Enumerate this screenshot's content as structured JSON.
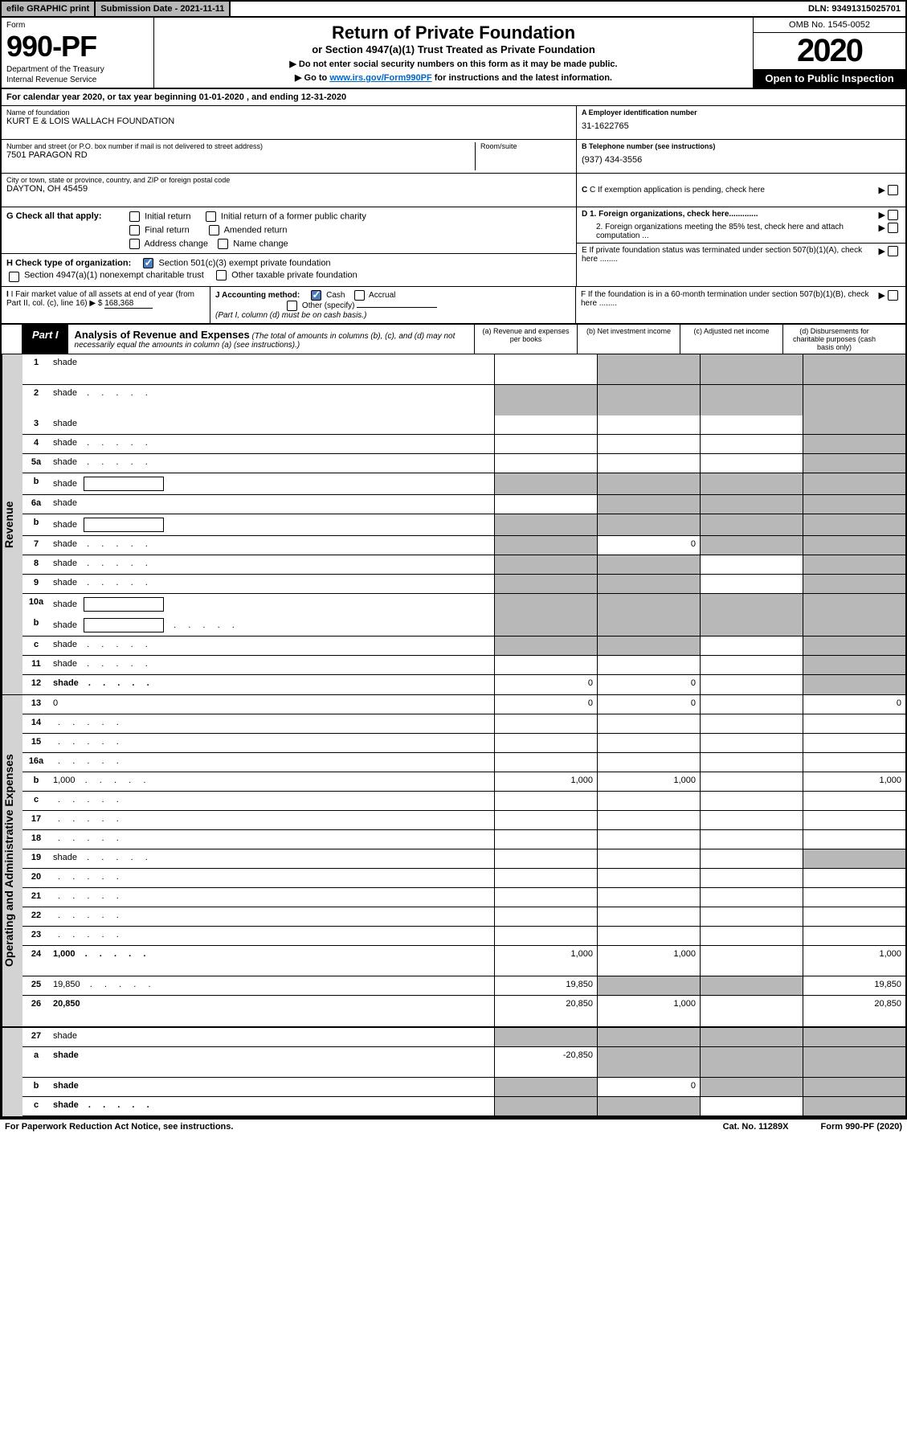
{
  "topbar": {
    "efile": "efile GRAPHIC print",
    "submission": "Submission Date - 2021-11-11",
    "dln": "DLN: 93491315025701"
  },
  "header": {
    "form_label": "Form",
    "form_num": "990-PF",
    "dept1": "Department of the Treasury",
    "dept2": "Internal Revenue Service",
    "title": "Return of Private Foundation",
    "subtitle": "or Section 4947(a)(1) Trust Treated as Private Foundation",
    "instr1": "▶ Do not enter social security numbers on this form as it may be made public.",
    "instr2_pre": "▶ Go to ",
    "instr2_link": "www.irs.gov/Form990PF",
    "instr2_post": " for instructions and the latest information.",
    "omb": "OMB No. 1545-0052",
    "year": "2020",
    "open": "Open to Public Inspection"
  },
  "cal_year": "For calendar year 2020, or tax year beginning 01-01-2020                               , and ending 12-31-2020",
  "info": {
    "name_label": "Name of foundation",
    "name": "KURT E & LOIS WALLACH FOUNDATION",
    "addr_label": "Number and street (or P.O. box number if mail is not delivered to street address)",
    "addr": "7501 PARAGON RD",
    "room_label": "Room/suite",
    "city_label": "City or town, state or province, country, and ZIP or foreign postal code",
    "city": "DAYTON, OH  45459",
    "ein_label": "A Employer identification number",
    "ein": "31-1622765",
    "tel_label": "B Telephone number (see instructions)",
    "tel": "(937) 434-3556",
    "c_label": "C If exemption application is pending, check here",
    "d1_label": "D 1. Foreign organizations, check here.............",
    "d2_label": "2. Foreign organizations meeting the 85% test, check here and attach computation ...",
    "e_label": "E  If private foundation status was terminated under section 507(b)(1)(A), check here ........",
    "f_label": "F  If the foundation is in a 60-month termination under section 507(b)(1)(B), check here ........"
  },
  "g": {
    "label": "G Check all that apply:",
    "opts": [
      "Initial return",
      "Initial return of a former public charity",
      "Final return",
      "Amended return",
      "Address change",
      "Name change"
    ]
  },
  "h": {
    "label": "H Check type of organization:",
    "opt1": "Section 501(c)(3) exempt private foundation",
    "opt2": "Section 4947(a)(1) nonexempt charitable trust",
    "opt3": "Other taxable private foundation"
  },
  "i": {
    "label": "I Fair market value of all assets at end of year (from Part II, col. (c), line 16) ▶ $",
    "val": "168,368"
  },
  "j": {
    "label": "J Accounting method:",
    "cash": "Cash",
    "accrual": "Accrual",
    "other": "Other (specify)",
    "note": "(Part I, column (d) must be on cash basis.)"
  },
  "part1": {
    "tab": "Part I",
    "title": "Analysis of Revenue and Expenses",
    "note": "(The total of amounts in columns (b), (c), and (d) may not necessarily equal the amounts in column (a) (see instructions).)",
    "col_a": "(a)  Revenue and expenses per books",
    "col_b": "(b)  Net investment income",
    "col_c": "(c)  Adjusted net income",
    "col_d": "(d)  Disbursements for charitable purposes (cash basis only)"
  },
  "side_labels": {
    "rev": "Revenue",
    "exp": "Operating and Administrative Expenses"
  },
  "rows": [
    {
      "n": "1",
      "d": "shade",
      "a": "",
      "b": "shade",
      "c": "shade",
      "tall": true
    },
    {
      "n": "2",
      "d": "shade",
      "a": "shade",
      "b": "shade",
      "c": "shade",
      "tall": true,
      "nob": true,
      "dots": true
    },
    {
      "n": "3",
      "d": "shade",
      "a": "",
      "b": "",
      "c": ""
    },
    {
      "n": "4",
      "d": "shade",
      "a": "",
      "b": "",
      "c": "",
      "dots": true
    },
    {
      "n": "5a",
      "d": "shade",
      "a": "",
      "b": "",
      "c": "",
      "dots": true
    },
    {
      "n": "b",
      "d": "shade",
      "a": "shade",
      "b": "shade",
      "c": "shade",
      "box": true
    },
    {
      "n": "6a",
      "d": "shade",
      "a": "",
      "b": "shade",
      "c": "shade"
    },
    {
      "n": "b",
      "d": "shade",
      "a": "shade",
      "b": "shade",
      "c": "shade",
      "box": true
    },
    {
      "n": "7",
      "d": "shade",
      "a": "shade",
      "b": "0",
      "c": "shade",
      "dots": true
    },
    {
      "n": "8",
      "d": "shade",
      "a": "shade",
      "b": "shade",
      "c": "",
      "dots": true
    },
    {
      "n": "9",
      "d": "shade",
      "a": "shade",
      "b": "shade",
      "c": "",
      "dots": true
    },
    {
      "n": "10a",
      "d": "shade",
      "a": "shade",
      "b": "shade",
      "c": "shade",
      "box": true,
      "nob": true
    },
    {
      "n": "b",
      "d": "shade",
      "a": "shade",
      "b": "shade",
      "c": "shade",
      "box": true,
      "dots": true
    },
    {
      "n": "c",
      "d": "shade",
      "a": "shade",
      "b": "shade",
      "c": "",
      "dots": true
    },
    {
      "n": "11",
      "d": "shade",
      "a": "",
      "b": "",
      "c": "",
      "dots": true
    },
    {
      "n": "12",
      "d": "shade",
      "a": "0",
      "b": "0",
      "c": "",
      "bold": true,
      "dots": true
    }
  ],
  "exp_rows": [
    {
      "n": "13",
      "d": "0",
      "a": "0",
      "b": "0",
      "c": ""
    },
    {
      "n": "14",
      "d": "",
      "a": "",
      "b": "",
      "c": "",
      "dots": true
    },
    {
      "n": "15",
      "d": "",
      "a": "",
      "b": "",
      "c": "",
      "dots": true
    },
    {
      "n": "16a",
      "d": "",
      "a": "",
      "b": "",
      "c": "",
      "dots": true
    },
    {
      "n": "b",
      "d": "1,000",
      "a": "1,000",
      "b": "1,000",
      "c": "",
      "dots": true
    },
    {
      "n": "c",
      "d": "",
      "a": "",
      "b": "",
      "c": "",
      "dots": true
    },
    {
      "n": "17",
      "d": "",
      "a": "",
      "b": "",
      "c": "",
      "dots": true
    },
    {
      "n": "18",
      "d": "",
      "a": "",
      "b": "",
      "c": "",
      "dots": true
    },
    {
      "n": "19",
      "d": "shade",
      "a": "",
      "b": "",
      "c": "",
      "dots": true
    },
    {
      "n": "20",
      "d": "",
      "a": "",
      "b": "",
      "c": "",
      "dots": true
    },
    {
      "n": "21",
      "d": "",
      "a": "",
      "b": "",
      "c": "",
      "dots": true
    },
    {
      "n": "22",
      "d": "",
      "a": "",
      "b": "",
      "c": "",
      "dots": true
    },
    {
      "n": "23",
      "d": "",
      "a": "",
      "b": "",
      "c": "",
      "dots": true
    },
    {
      "n": "24",
      "d": "1,000",
      "a": "1,000",
      "b": "1,000",
      "c": "",
      "bold": true,
      "tall": true,
      "dots": true
    },
    {
      "n": "25",
      "d": "19,850",
      "a": "19,850",
      "b": "shade",
      "c": "shade",
      "dots": true
    },
    {
      "n": "26",
      "d": "20,850",
      "a": "20,850",
      "b": "1,000",
      "c": "",
      "bold": true,
      "tall": true
    }
  ],
  "final_rows": [
    {
      "n": "27",
      "d": "shade",
      "a": "shade",
      "b": "shade",
      "c": "shade"
    },
    {
      "n": "a",
      "d": "shade",
      "a": "-20,850",
      "b": "shade",
      "c": "shade",
      "bold": true,
      "tall": true
    },
    {
      "n": "b",
      "d": "shade",
      "a": "shade",
      "b": "0",
      "c": "shade",
      "bold": true
    },
    {
      "n": "c",
      "d": "shade",
      "a": "shade",
      "b": "shade",
      "c": "",
      "bold": true,
      "dots": true
    }
  ],
  "footer": {
    "left": "For Paperwork Reduction Act Notice, see instructions.",
    "mid": "Cat. No. 11289X",
    "right": "Form 990-PF (2020)"
  }
}
